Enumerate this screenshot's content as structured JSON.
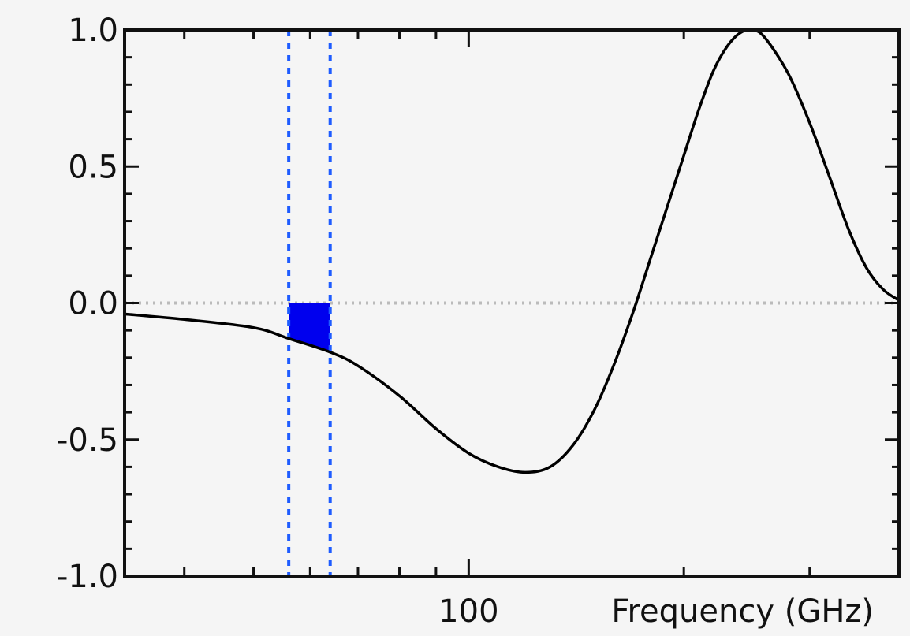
{
  "chart_data": {
    "type": "line",
    "title": "",
    "xlabel": "Frequency (GHz)",
    "ylabel": "",
    "x_scale": "log",
    "xlim": [
      33,
      400
    ],
    "ylim": [
      -1.0,
      1.0
    ],
    "y_ticks": [
      {
        "value": 1.0,
        "label": "1.0"
      },
      {
        "value": 0.5,
        "label": "0.5"
      },
      {
        "value": 0.0,
        "label": "0.0"
      },
      {
        "value": -0.5,
        "label": "-0.5"
      },
      {
        "value": -1.0,
        "label": "-1.0"
      }
    ],
    "x_ticks": [
      {
        "value": 100,
        "label": "100"
      }
    ],
    "reference_line": {
      "y": 0.0,
      "style": "dotted",
      "color": "#bbbbbb"
    },
    "band": {
      "x_start": 56,
      "x_end": 64,
      "color": "#1e5cff",
      "style": "dotted"
    },
    "series": [
      {
        "color": "#000000",
        "points": [
          {
            "x": 33,
            "y": -0.04
          },
          {
            "x": 40,
            "y": -0.06
          },
          {
            "x": 50,
            "y": -0.09
          },
          {
            "x": 56,
            "y": -0.13
          },
          {
            "x": 64,
            "y": -0.18
          },
          {
            "x": 70,
            "y": -0.23
          },
          {
            "x": 80,
            "y": -0.34
          },
          {
            "x": 90,
            "y": -0.46
          },
          {
            "x": 100,
            "y": -0.55
          },
          {
            "x": 110,
            "y": -0.6
          },
          {
            "x": 120,
            "y": -0.62
          },
          {
            "x": 130,
            "y": -0.6
          },
          {
            "x": 140,
            "y": -0.52
          },
          {
            "x": 150,
            "y": -0.39
          },
          {
            "x": 160,
            "y": -0.22
          },
          {
            "x": 170,
            "y": -0.03
          },
          {
            "x": 180,
            "y": 0.17
          },
          {
            "x": 190,
            "y": 0.36
          },
          {
            "x": 200,
            "y": 0.54
          },
          {
            "x": 210,
            "y": 0.71
          },
          {
            "x": 220,
            "y": 0.85
          },
          {
            "x": 230,
            "y": 0.94
          },
          {
            "x": 240,
            "y": 0.99
          },
          {
            "x": 250,
            "y": 1.0
          },
          {
            "x": 260,
            "y": 0.97
          },
          {
            "x": 280,
            "y": 0.84
          },
          {
            "x": 300,
            "y": 0.66
          },
          {
            "x": 320,
            "y": 0.46
          },
          {
            "x": 340,
            "y": 0.27
          },
          {
            "x": 360,
            "y": 0.13
          },
          {
            "x": 380,
            "y": 0.05
          },
          {
            "x": 400,
            "y": 0.01
          }
        ]
      }
    ],
    "filled_area": {
      "x_start": 56,
      "x_end": 64,
      "color": "#0000ee"
    },
    "grid": false,
    "legend": "none",
    "colors": {
      "background": "#f5f5f5",
      "frame": "#111111",
      "curve": "#000000",
      "band_lines": "#1e5cff",
      "fill": "#0000ee"
    }
  }
}
